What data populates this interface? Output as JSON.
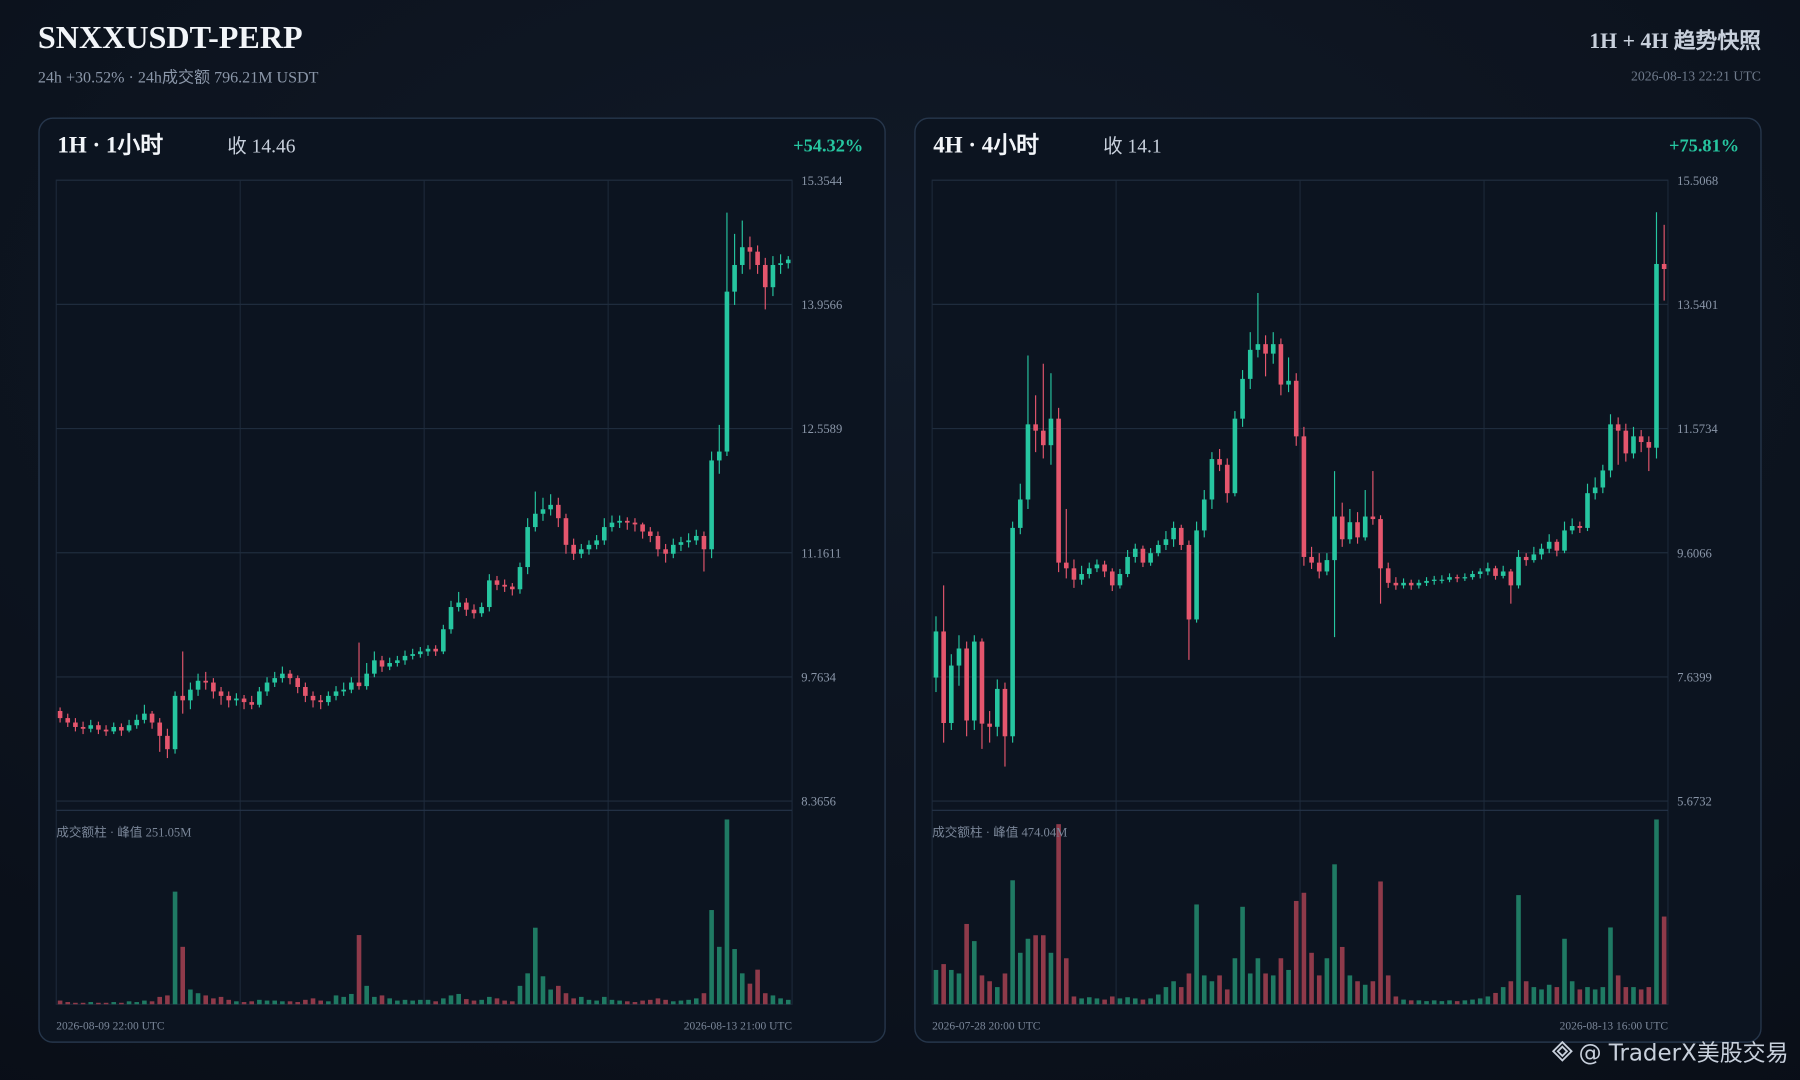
{
  "header": {
    "title": "SNXXUSDT-PERP",
    "subtitle": "24h +30.52% · 24h成交额 796.21M USDT",
    "right_title": "1H + 4H 趋势快照",
    "timestamp": "2026-08-13 22:21 UTC"
  },
  "watermark": "@ TraderX美股交易",
  "chart_data": [
    {
      "type": "candlestick",
      "timeframe": "1H · 1小时",
      "close_label": "收 14.46",
      "change": "+54.32%",
      "volume_label": "成交额柱 · 峰值 251.05M",
      "x_start": "2026-08-09 22:00 UTC",
      "x_end": "2026-08-13 21:00 UTC",
      "up_color": "#26c6a0",
      "down_color": "#e5566d",
      "volume_up_color": "#1f7a63",
      "volume_down_color": "#8f3a4a",
      "ylim": [
        8.3656,
        15.3544
      ],
      "yticks": [
        8.3656,
        9.7634,
        11.1611,
        12.5589,
        13.9566,
        15.3544
      ],
      "ohlc": [
        [
          9.38,
          9.42,
          9.25,
          9.3
        ],
        [
          9.3,
          9.35,
          9.2,
          9.25
        ],
        [
          9.25,
          9.3,
          9.15,
          9.2
        ],
        [
          9.2,
          9.26,
          9.12,
          9.18
        ],
        [
          9.18,
          9.28,
          9.14,
          9.22
        ],
        [
          9.22,
          9.26,
          9.12,
          9.17
        ],
        [
          9.17,
          9.22,
          9.1,
          9.15
        ],
        [
          9.15,
          9.25,
          9.12,
          9.2
        ],
        [
          9.2,
          9.24,
          9.1,
          9.16
        ],
        [
          9.16,
          9.28,
          9.14,
          9.22
        ],
        [
          9.22,
          9.34,
          9.18,
          9.28
        ],
        [
          9.28,
          9.45,
          9.24,
          9.35
        ],
        [
          9.35,
          9.38,
          9.18,
          9.25
        ],
        [
          9.25,
          9.3,
          8.92,
          9.1
        ],
        [
          9.1,
          9.18,
          8.85,
          8.95
        ],
        [
          8.95,
          9.6,
          8.9,
          9.55
        ],
        [
          9.55,
          10.05,
          9.35,
          9.5
        ],
        [
          9.5,
          9.7,
          9.4,
          9.62
        ],
        [
          9.62,
          9.8,
          9.55,
          9.72
        ],
        [
          9.72,
          9.82,
          9.62,
          9.7
        ],
        [
          9.7,
          9.75,
          9.52,
          9.6
        ],
        [
          9.6,
          9.65,
          9.45,
          9.55
        ],
        [
          9.55,
          9.6,
          9.42,
          9.5
        ],
        [
          9.5,
          9.58,
          9.44,
          9.52
        ],
        [
          9.52,
          9.56,
          9.4,
          9.48
        ],
        [
          9.48,
          9.55,
          9.4,
          9.45
        ],
        [
          9.45,
          9.65,
          9.42,
          9.6
        ],
        [
          9.6,
          9.76,
          9.55,
          9.7
        ],
        [
          9.7,
          9.82,
          9.65,
          9.75
        ],
        [
          9.75,
          9.88,
          9.7,
          9.8
        ],
        [
          9.8,
          9.84,
          9.68,
          9.75
        ],
        [
          9.75,
          9.78,
          9.58,
          9.65
        ],
        [
          9.65,
          9.7,
          9.48,
          9.55
        ],
        [
          9.55,
          9.6,
          9.42,
          9.5
        ],
        [
          9.5,
          9.56,
          9.4,
          9.48
        ],
        [
          9.48,
          9.6,
          9.44,
          9.55
        ],
        [
          9.55,
          9.66,
          9.5,
          9.6
        ],
        [
          9.6,
          9.7,
          9.55,
          9.62
        ],
        [
          9.62,
          9.76,
          9.58,
          9.7
        ],
        [
          9.7,
          10.15,
          9.62,
          9.66
        ],
        [
          9.66,
          9.92,
          9.62,
          9.8
        ],
        [
          9.8,
          10.05,
          9.76,
          9.95
        ],
        [
          9.95,
          10.0,
          9.82,
          9.88
        ],
        [
          9.88,
          9.98,
          9.84,
          9.92
        ],
        [
          9.92,
          10.0,
          9.88,
          9.95
        ],
        [
          9.95,
          10.06,
          9.9,
          10.0
        ],
        [
          10.0,
          10.08,
          9.96,
          10.02
        ],
        [
          10.02,
          10.1,
          9.98,
          10.05
        ],
        [
          10.05,
          10.12,
          10.0,
          10.08
        ],
        [
          10.08,
          10.12,
          10.0,
          10.05
        ],
        [
          10.05,
          10.35,
          10.02,
          10.3
        ],
        [
          10.3,
          10.62,
          10.25,
          10.55
        ],
        [
          10.55,
          10.72,
          10.5,
          10.6
        ],
        [
          10.6,
          10.65,
          10.45,
          10.52
        ],
        [
          10.52,
          10.58,
          10.42,
          10.48
        ],
        [
          10.48,
          10.6,
          10.44,
          10.55
        ],
        [
          10.55,
          10.92,
          10.5,
          10.85
        ],
        [
          10.85,
          10.9,
          10.74,
          10.8
        ],
        [
          10.8,
          10.86,
          10.72,
          10.78
        ],
        [
          10.78,
          10.82,
          10.68,
          10.75
        ],
        [
          10.75,
          11.05,
          10.7,
          11.0
        ],
        [
          11.0,
          11.55,
          10.92,
          11.45
        ],
        [
          11.45,
          11.85,
          11.4,
          11.6
        ],
        [
          11.6,
          11.78,
          11.52,
          11.65
        ],
        [
          11.65,
          11.82,
          11.58,
          11.7
        ],
        [
          11.7,
          11.78,
          11.45,
          11.55
        ],
        [
          11.55,
          11.6,
          11.15,
          11.25
        ],
        [
          11.25,
          11.32,
          11.08,
          11.15
        ],
        [
          11.15,
          11.26,
          11.1,
          11.2
        ],
        [
          11.2,
          11.3,
          11.14,
          11.25
        ],
        [
          11.25,
          11.36,
          11.2,
          11.3
        ],
        [
          11.3,
          11.55,
          11.25,
          11.45
        ],
        [
          11.45,
          11.58,
          11.4,
          11.5
        ],
        [
          11.5,
          11.58,
          11.44,
          11.52
        ],
        [
          11.52,
          11.56,
          11.42,
          11.5
        ],
        [
          11.5,
          11.55,
          11.4,
          11.48
        ],
        [
          11.48,
          11.5,
          11.32,
          11.4
        ],
        [
          11.4,
          11.45,
          11.28,
          11.35
        ],
        [
          11.35,
          11.4,
          11.12,
          11.2
        ],
        [
          11.2,
          11.26,
          11.05,
          11.15
        ],
        [
          11.15,
          11.32,
          11.1,
          11.25
        ],
        [
          11.25,
          11.34,
          11.18,
          11.28
        ],
        [
          11.28,
          11.38,
          11.22,
          11.3
        ],
        [
          11.3,
          11.42,
          11.25,
          11.35
        ],
        [
          11.35,
          11.4,
          10.95,
          11.2
        ],
        [
          11.2,
          12.3,
          11.1,
          12.2
        ],
        [
          12.2,
          12.6,
          12.05,
          12.3
        ],
        [
          12.3,
          14.99,
          12.25,
          14.1
        ],
        [
          14.1,
          14.75,
          13.95,
          14.4
        ],
        [
          14.4,
          14.9,
          14.3,
          14.6
        ],
        [
          14.6,
          14.72,
          14.35,
          14.55
        ],
        [
          14.55,
          14.62,
          14.3,
          14.4
        ],
        [
          14.4,
          14.48,
          13.9,
          14.15
        ],
        [
          14.15,
          14.5,
          14.05,
          14.4
        ],
        [
          14.4,
          14.52,
          14.3,
          14.42
        ],
        [
          14.42,
          14.5,
          14.36,
          14.46
        ]
      ],
      "volume": [
        5,
        3,
        2,
        2,
        3,
        2,
        2,
        3,
        2,
        4,
        3,
        5,
        4,
        10,
        12,
        153,
        78,
        20,
        15,
        12,
        8,
        10,
        6,
        4,
        3,
        4,
        6,
        5,
        5,
        4,
        4,
        3,
        6,
        8,
        5,
        4,
        12,
        10,
        14,
        94,
        25,
        10,
        12,
        8,
        5,
        6,
        5,
        6,
        6,
        4,
        8,
        12,
        14,
        7,
        5,
        6,
        10,
        8,
        5,
        4,
        25,
        42,
        104,
        38,
        20,
        25,
        15,
        8,
        10,
        6,
        5,
        10,
        6,
        5,
        4,
        3,
        5,
        6,
        8,
        6,
        4,
        5,
        6,
        8,
        15,
        128,
        78,
        251.05,
        75,
        42,
        28,
        47,
        15,
        12,
        8,
        6
      ]
    },
    {
      "type": "candlestick",
      "timeframe": "4H · 4小时",
      "close_label": "收 14.1",
      "change": "+75.81%",
      "volume_label": "成交额柱 · 峰值 474.04M",
      "x_start": "2026-07-28 20:00 UTC",
      "x_end": "2026-08-13 16:00 UTC",
      "up_color": "#26c6a0",
      "down_color": "#e5566d",
      "volume_up_color": "#1f7a63",
      "volume_down_color": "#8f3a4a",
      "ylim": [
        5.6732,
        15.5068
      ],
      "yticks": [
        5.6732,
        7.6399,
        9.6066,
        11.5734,
        13.5401,
        15.5068
      ],
      "ohlc": [
        [
          7.63,
          8.6,
          7.4,
          8.36
        ],
        [
          8.36,
          9.09,
          6.6,
          6.91
        ],
        [
          6.91,
          8.0,
          6.8,
          7.82
        ],
        [
          7.82,
          8.3,
          7.5,
          8.09
        ],
        [
          8.09,
          8.2,
          6.7,
          6.95
        ],
        [
          6.95,
          8.3,
          6.8,
          8.2
        ],
        [
          8.2,
          8.25,
          6.5,
          6.9
        ],
        [
          6.9,
          7.1,
          6.6,
          6.85
        ],
        [
          6.85,
          7.6,
          6.7,
          7.45
        ],
        [
          7.45,
          7.55,
          6.22,
          6.7
        ],
        [
          6.7,
          10.1,
          6.6,
          10.0
        ],
        [
          10.0,
          10.7,
          9.9,
          10.45
        ],
        [
          10.45,
          12.73,
          10.3,
          11.64
        ],
        [
          11.64,
          12.1,
          11.2,
          11.54
        ],
        [
          11.54,
          12.6,
          11.1,
          11.31
        ],
        [
          11.31,
          12.45,
          11.0,
          11.73
        ],
        [
          11.73,
          11.9,
          9.3,
          9.45
        ],
        [
          9.45,
          10.3,
          9.2,
          9.36
        ],
        [
          9.36,
          9.5,
          9.05,
          9.18
        ],
        [
          9.18,
          9.4,
          9.1,
          9.27
        ],
        [
          9.27,
          9.45,
          9.2,
          9.36
        ],
        [
          9.36,
          9.5,
          9.3,
          9.42
        ],
        [
          9.42,
          9.48,
          9.22,
          9.31
        ],
        [
          9.31,
          9.36,
          9.0,
          9.09
        ],
        [
          9.09,
          9.35,
          9.04,
          9.27
        ],
        [
          9.27,
          9.65,
          9.22,
          9.54
        ],
        [
          9.54,
          9.75,
          9.45,
          9.67
        ],
        [
          9.67,
          9.72,
          9.38,
          9.45
        ],
        [
          9.45,
          9.68,
          9.4,
          9.6
        ],
        [
          9.6,
          9.8,
          9.55,
          9.73
        ],
        [
          9.73,
          9.95,
          9.65,
          9.82
        ],
        [
          9.82,
          10.1,
          9.7,
          10.0
        ],
        [
          10.0,
          10.05,
          9.65,
          9.73
        ],
        [
          9.73,
          9.8,
          7.91,
          8.55
        ],
        [
          8.55,
          10.1,
          8.5,
          9.96
        ],
        [
          9.96,
          10.6,
          9.85,
          10.45
        ],
        [
          10.45,
          11.2,
          10.3,
          11.09
        ],
        [
          11.09,
          11.25,
          10.9,
          11.0
        ],
        [
          11.0,
          11.1,
          10.4,
          10.55
        ],
        [
          10.55,
          11.85,
          10.5,
          11.73
        ],
        [
          11.73,
          12.5,
          11.6,
          12.36
        ],
        [
          12.36,
          13.1,
          12.2,
          12.82
        ],
        [
          12.82,
          13.72,
          12.7,
          12.91
        ],
        [
          12.91,
          13.05,
          12.4,
          12.76
        ],
        [
          12.76,
          13.1,
          12.6,
          12.91
        ],
        [
          12.91,
          13.0,
          12.1,
          12.27
        ],
        [
          12.27,
          12.7,
          12.15,
          12.33
        ],
        [
          12.33,
          12.45,
          11.3,
          11.45
        ],
        [
          11.45,
          11.6,
          9.4,
          9.54
        ],
        [
          9.54,
          9.7,
          9.35,
          9.45
        ],
        [
          9.45,
          9.6,
          9.2,
          9.31
        ],
        [
          9.31,
          9.6,
          9.25,
          9.49
        ],
        [
          9.49,
          10.9,
          8.27,
          10.18
        ],
        [
          10.18,
          10.4,
          9.7,
          9.82
        ],
        [
          9.82,
          10.3,
          9.75,
          10.09
        ],
        [
          10.09,
          10.25,
          9.75,
          9.85
        ],
        [
          9.85,
          10.6,
          9.8,
          10.18
        ],
        [
          10.18,
          10.9,
          10.05,
          10.14
        ],
        [
          10.14,
          10.2,
          8.8,
          9.36
        ],
        [
          9.36,
          9.45,
          9.05,
          9.13
        ],
        [
          9.13,
          9.22,
          9.02,
          9.09
        ],
        [
          9.09,
          9.2,
          9.04,
          9.13
        ],
        [
          9.13,
          9.18,
          9.02,
          9.09
        ],
        [
          9.09,
          9.18,
          9.04,
          9.13
        ],
        [
          9.13,
          9.22,
          9.08,
          9.16
        ],
        [
          9.16,
          9.24,
          9.1,
          9.18
        ],
        [
          9.18,
          9.25,
          9.12,
          9.18
        ],
        [
          9.18,
          9.28,
          9.14,
          9.22
        ],
        [
          9.22,
          9.26,
          9.14,
          9.2
        ],
        [
          9.2,
          9.28,
          9.16,
          9.22
        ],
        [
          9.22,
          9.32,
          9.18,
          9.27
        ],
        [
          9.27,
          9.36,
          9.2,
          9.31
        ],
        [
          9.31,
          9.45,
          9.25,
          9.36
        ],
        [
          9.36,
          9.4,
          9.18,
          9.24
        ],
        [
          9.24,
          9.4,
          9.2,
          9.31
        ],
        [
          9.31,
          9.35,
          8.8,
          9.09
        ],
        [
          9.09,
          9.65,
          9.04,
          9.54
        ],
        [
          9.54,
          9.6,
          9.4,
          9.49
        ],
        [
          9.49,
          9.7,
          9.45,
          9.58
        ],
        [
          9.58,
          9.75,
          9.5,
          9.67
        ],
        [
          9.67,
          9.9,
          9.6,
          9.78
        ],
        [
          9.78,
          9.82,
          9.55,
          9.64
        ],
        [
          9.64,
          10.1,
          9.6,
          9.96
        ],
        [
          9.96,
          10.15,
          9.9,
          10.03
        ],
        [
          10.03,
          10.1,
          9.92,
          10.0
        ],
        [
          10.0,
          10.7,
          9.95,
          10.55
        ],
        [
          10.55,
          10.8,
          10.45,
          10.64
        ],
        [
          10.64,
          11.0,
          10.55,
          10.91
        ],
        [
          10.91,
          11.8,
          10.8,
          11.64
        ],
        [
          11.64,
          11.75,
          11.0,
          11.54
        ],
        [
          11.54,
          11.65,
          11.05,
          11.18
        ],
        [
          11.18,
          11.6,
          11.1,
          11.45
        ],
        [
          11.45,
          11.55,
          11.2,
          11.36
        ],
        [
          11.36,
          11.45,
          10.9,
          11.27
        ],
        [
          11.27,
          15.0,
          11.1,
          14.18
        ],
        [
          14.18,
          14.8,
          13.6,
          14.1
        ]
      ],
      "volume": [
        88,
        103,
        88,
        79,
        206,
        162,
        74,
        59,
        44,
        79,
        318,
        132,
        168,
        177,
        177,
        132,
        462,
        118,
        20,
        15,
        18,
        15,
        12,
        20,
        15,
        18,
        15,
        12,
        15,
        25,
        44,
        59,
        44,
        79,
        256,
        74,
        59,
        74,
        38,
        118,
        250,
        79,
        118,
        79,
        74,
        118,
        88,
        265,
        286,
        132,
        74,
        118,
        359,
        147,
        74,
        59,
        50,
        59,
        315,
        74,
        20,
        12,
        10,
        10,
        8,
        10,
        8,
        10,
        8,
        10,
        12,
        15,
        20,
        29,
        44,
        59,
        280,
        59,
        44,
        38,
        50,
        44,
        168,
        59,
        38,
        44,
        38,
        44,
        197,
        74,
        44,
        44,
        38,
        44,
        474.04,
        225
      ]
    }
  ]
}
